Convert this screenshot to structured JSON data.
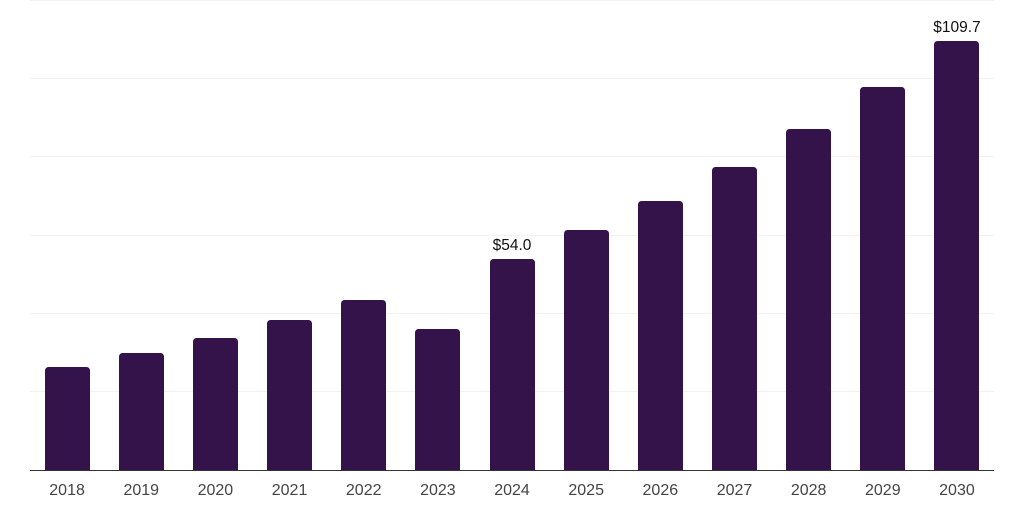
{
  "chart_data": {
    "type": "bar",
    "title": "",
    "xlabel": "",
    "ylabel": "",
    "categories": [
      "2018",
      "2019",
      "2020",
      "2021",
      "2022",
      "2023",
      "2024",
      "2025",
      "2026",
      "2027",
      "2028",
      "2029",
      "2030"
    ],
    "values": [
      26.4,
      29.9,
      33.7,
      38.5,
      43.5,
      36.1,
      54.0,
      61.4,
      68.8,
      77.5,
      87.2,
      97.9,
      109.7
    ],
    "data_labels": [
      {
        "index": 6,
        "text": "$54.0"
      },
      {
        "index": 12,
        "text": "$109.7"
      }
    ],
    "ylim": [
      0,
      120
    ],
    "grid_step": 20,
    "grid": "horizontal-only",
    "y_tick_labels_shown": false,
    "legend": "none",
    "colors": {
      "bar": "#331349",
      "gridline": "#f2f2f2",
      "axis_line": "#333333",
      "value_label": "#111111",
      "tick_label": "#444444",
      "background": "#ffffff"
    }
  }
}
